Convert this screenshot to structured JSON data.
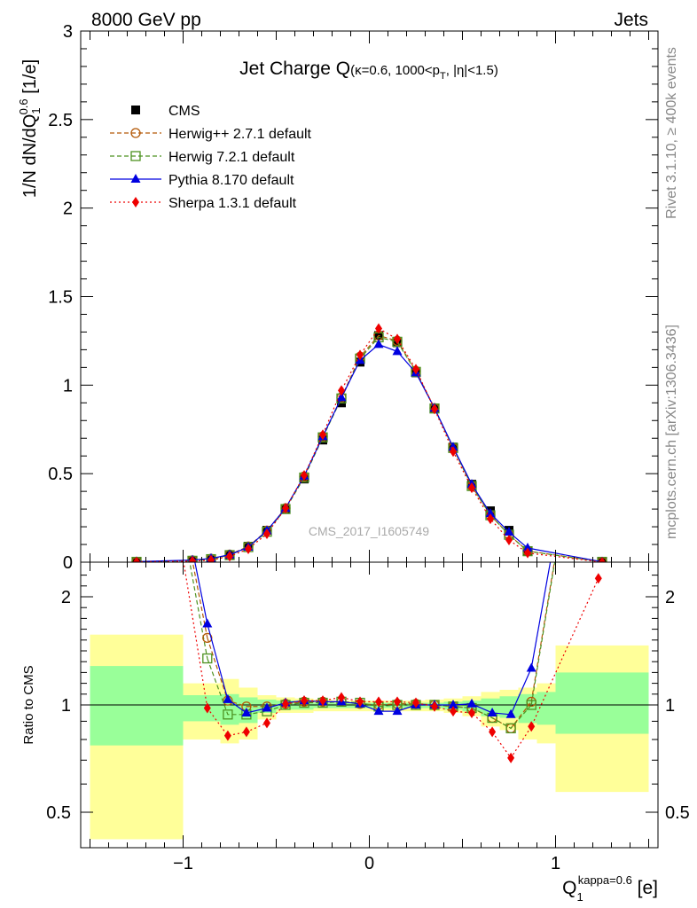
{
  "header": {
    "left_label": "8000 GeV pp",
    "right_label": "Jets"
  },
  "side_labels": {
    "rivet": "Rivet 3.1.10, ≥ 400k events",
    "mcplots": "mcplots.cern.ch [arXiv:1306.3436]"
  },
  "watermark": "CMS_2017_I1605749",
  "chart_data": [
    {
      "type": "line",
      "panel": "main",
      "title": "Jet Charge Q",
      "title_small": "(κ=0.6, 1000<p",
      "title_sub": "T",
      "title_tail": ", |η|<1.5)",
      "ylabel": "1/N dN/dQ",
      "ylabel_sub": "1",
      "ylabel_sup": "0.6",
      "ylabel_unit": " [1/e]",
      "xlim": [
        -1.55,
        1.55
      ],
      "ylim": [
        0,
        3
      ],
      "yticks": [
        "0",
        "0.5",
        "1",
        "1.5",
        "2",
        "2.5",
        "3"
      ],
      "yticks_values": [
        0,
        0.5,
        1,
        1.5,
        2,
        2.5,
        3
      ],
      "legend_placement": "top-left",
      "series": [
        {
          "name": "CMS",
          "color": "#000000",
          "marker": "square",
          "x": [
            -1.25,
            -0.95,
            -0.85,
            -0.75,
            -0.65,
            -0.55,
            -0.45,
            -0.35,
            -0.25,
            -0.15,
            -0.05,
            0.05,
            0.15,
            0.25,
            0.35,
            0.45,
            0.55,
            0.65,
            0.75,
            0.85,
            1.25
          ],
          "y": [
            0.0,
            0.005,
            0.012,
            0.04,
            0.09,
            0.18,
            0.3,
            0.47,
            0.69,
            0.9,
            1.13,
            1.28,
            1.24,
            1.07,
            0.87,
            0.65,
            0.44,
            0.29,
            0.18,
            0.06,
            0.0
          ]
        },
        {
          "name": "Herwig++ 2.7.1 default",
          "color": "#b35806",
          "marker": "circle-open",
          "x": [
            -1.25,
            -0.95,
            -0.85,
            -0.75,
            -0.65,
            -0.55,
            -0.45,
            -0.35,
            -0.25,
            -0.15,
            -0.05,
            0.05,
            0.15,
            0.25,
            0.35,
            0.45,
            0.55,
            0.65,
            0.75,
            0.85,
            1.25
          ],
          "y": [
            0.002,
            0.01,
            0.019,
            0.043,
            0.089,
            0.178,
            0.305,
            0.484,
            0.71,
            0.93,
            1.16,
            1.28,
            1.25,
            1.08,
            0.87,
            0.645,
            0.43,
            0.265,
            0.155,
            0.063,
            0.002
          ]
        },
        {
          "name": "Herwig 7.2.1 default",
          "color": "#4d9221",
          "marker": "square-open",
          "x": [
            -1.25,
            -0.95,
            -0.85,
            -0.75,
            -0.65,
            -0.55,
            -0.45,
            -0.35,
            -0.25,
            -0.15,
            -0.05,
            0.05,
            0.15,
            0.25,
            0.35,
            0.45,
            0.55,
            0.65,
            0.75,
            0.85,
            1.25
          ],
          "y": [
            0.002,
            0.008,
            0.017,
            0.04,
            0.085,
            0.172,
            0.3,
            0.478,
            0.705,
            0.925,
            1.15,
            1.27,
            1.245,
            1.075,
            0.868,
            0.645,
            0.43,
            0.265,
            0.155,
            0.062,
            0.002
          ]
        },
        {
          "name": "Pythia 8.170 default",
          "color": "#0000e0",
          "marker": "triangle",
          "x": [
            -1.25,
            -0.95,
            -0.85,
            -0.75,
            -0.65,
            -0.55,
            -0.45,
            -0.35,
            -0.25,
            -0.15,
            -0.05,
            0.05,
            0.15,
            0.25,
            0.35,
            0.45,
            0.55,
            0.65,
            0.75,
            0.85,
            1.25
          ],
          "y": [
            0.003,
            0.012,
            0.021,
            0.042,
            0.085,
            0.178,
            0.305,
            0.487,
            0.71,
            0.93,
            1.14,
            1.23,
            1.19,
            1.07,
            0.87,
            0.65,
            0.44,
            0.275,
            0.17,
            0.08,
            0.002
          ]
        },
        {
          "name": "Sherpa 1.3.1 default",
          "color": "#ee0000",
          "marker": "diamond",
          "x": [
            -1.25,
            -0.95,
            -0.85,
            -0.75,
            -0.65,
            -0.55,
            -0.45,
            -0.35,
            -0.25,
            -0.15,
            -0.05,
            0.05,
            0.15,
            0.25,
            0.35,
            0.45,
            0.55,
            0.65,
            0.75,
            0.85,
            1.25
          ],
          "y": [
            0.002,
            0.006,
            0.012,
            0.033,
            0.075,
            0.16,
            0.305,
            0.49,
            0.72,
            0.97,
            1.17,
            1.32,
            1.26,
            1.09,
            0.865,
            0.625,
            0.42,
            0.245,
            0.125,
            0.052,
            0.0
          ]
        }
      ]
    },
    {
      "type": "line",
      "panel": "ratio",
      "ylabel": "Ratio to CMS",
      "xlabel": "Q",
      "xlabel_sub": "1",
      "xlabel_sup": "kappa=0.6",
      "xlabel_unit": " [e]",
      "xlim": [
        -1.55,
        1.55
      ],
      "ylim": [
        0.4,
        2.25
      ],
      "xticks": [
        "−1",
        "0",
        "1"
      ],
      "xticks_values": [
        -1,
        0,
        1
      ],
      "yticks": [
        "0.5",
        "1",
        "2"
      ],
      "yticks_values": [
        0.5,
        1,
        2
      ],
      "bands": {
        "bin_edges": [
          -1.5,
          -1.0,
          -0.9,
          -0.8,
          -0.7,
          -0.6,
          -0.5,
          -0.4,
          -0.3,
          -0.2,
          -0.1,
          0.0,
          0.1,
          0.2,
          0.3,
          0.4,
          0.5,
          0.6,
          0.7,
          0.8,
          0.9,
          1.0,
          1.5
        ],
        "green_low": [
          0.77,
          0.9,
          0.9,
          0.88,
          0.89,
          0.95,
          0.97,
          0.97,
          0.98,
          0.98,
          0.98,
          0.98,
          0.98,
          0.98,
          0.98,
          0.97,
          0.96,
          0.93,
          0.92,
          0.89,
          0.88,
          0.83
        ],
        "green_high": [
          1.36,
          1.09,
          1.09,
          1.1,
          1.07,
          1.05,
          1.04,
          1.03,
          1.02,
          1.02,
          1.02,
          1.02,
          1.02,
          1.02,
          1.02,
          1.03,
          1.04,
          1.06,
          1.08,
          1.1,
          1.12,
          1.3
        ],
        "yellow_low": [
          0.42,
          0.8,
          0.8,
          0.78,
          0.8,
          0.91,
          0.95,
          0.95,
          0.96,
          0.96,
          0.96,
          0.96,
          0.96,
          0.96,
          0.96,
          0.95,
          0.93,
          0.87,
          0.85,
          0.8,
          0.78,
          0.57
        ],
        "yellow_high": [
          1.65,
          1.2,
          1.2,
          1.24,
          1.16,
          1.09,
          1.07,
          1.06,
          1.05,
          1.04,
          1.04,
          1.04,
          1.04,
          1.04,
          1.05,
          1.06,
          1.08,
          1.12,
          1.14,
          1.16,
          1.2,
          1.55
        ],
        "green_color": "#99ff99",
        "yellow_color": "#ffff99"
      },
      "series": [
        {
          "name": "Herwig++ 2.7.1 default",
          "color": "#b35806",
          "marker": "circle-open",
          "x": [
            -0.87,
            -0.76,
            -0.66,
            -0.55,
            -0.45,
            -0.35,
            -0.25,
            -0.15,
            -0.05,
            0.05,
            0.15,
            0.25,
            0.35,
            0.45,
            0.55,
            0.66,
            0.76,
            0.87
          ],
          "y": [
            1.62,
            1.04,
            0.99,
            0.99,
            1.01,
            1.03,
            1.03,
            1.03,
            1.01,
            1.0,
            1.01,
            1.01,
            1.0,
            0.99,
            0.98,
            0.92,
            0.86,
            1.03
          ]
        },
        {
          "name": "Herwig 7.2.1 default",
          "color": "#4d9221",
          "marker": "square-open",
          "x": [
            -0.87,
            -0.76,
            -0.66,
            -0.55,
            -0.45,
            -0.35,
            -0.25,
            -0.15,
            -0.05,
            0.05,
            0.15,
            0.25,
            0.35,
            0.45,
            0.55,
            0.66,
            0.76,
            0.87
          ],
          "y": [
            1.43,
            0.94,
            0.94,
            0.96,
            1.0,
            1.02,
            1.02,
            1.03,
            1.02,
            0.99,
            1.0,
            1.0,
            1.0,
            0.99,
            0.98,
            0.92,
            0.86,
            1.0
          ]
        },
        {
          "name": "Pythia 8.170 default",
          "color": "#0000e0",
          "marker": "triangle",
          "x": [
            -0.87,
            -0.76,
            -0.66,
            -0.55,
            -0.45,
            -0.35,
            -0.25,
            -0.15,
            -0.05,
            0.05,
            0.15,
            0.25,
            0.35,
            0.45,
            0.55,
            0.66,
            0.76,
            0.87
          ],
          "y": [
            1.75,
            1.05,
            0.95,
            0.98,
            1.02,
            1.04,
            1.03,
            1.03,
            1.01,
            0.96,
            0.96,
            1.0,
            1.0,
            1.0,
            1.01,
            0.95,
            0.94,
            1.34
          ]
        },
        {
          "name": "Sherpa 1.3.1 default",
          "color": "#ee0000",
          "marker": "diamond",
          "x": [
            -0.87,
            -0.76,
            -0.66,
            -0.55,
            -0.45,
            -0.35,
            -0.25,
            -0.15,
            -0.05,
            0.05,
            0.15,
            0.25,
            0.35,
            0.45,
            0.55,
            0.66,
            0.76,
            0.87,
            1.23
          ],
          "y": [
            0.98,
            0.82,
            0.84,
            0.89,
            1.01,
            1.04,
            1.04,
            1.07,
            1.03,
            1.03,
            1.03,
            1.02,
            0.99,
            0.96,
            0.95,
            0.84,
            0.71,
            0.87,
            2.17
          ]
        }
      ],
      "offscale_lines": [
        {
          "color": "#0000e0",
          "x": [
            -1.25,
            -0.87
          ],
          "y": [
            5.0,
            1.75
          ],
          "x_end": [
            0.87,
            1.25
          ],
          "y_end": [
            1.34,
            5.0
          ]
        },
        {
          "color": "#b35806",
          "x": [
            -1.25,
            -0.87
          ],
          "y": [
            5.0,
            1.62
          ],
          "x_end": [
            0.87,
            1.25
          ],
          "y_end": [
            1.03,
            5.0
          ]
        },
        {
          "color": "#4d9221",
          "x": [
            -1.25,
            -0.87
          ],
          "y": [
            5.0,
            1.43
          ],
          "x_end": [
            0.87,
            1.25
          ],
          "y_end": [
            1.0,
            5.0
          ]
        },
        {
          "color": "#ee0000",
          "x": [
            -1.25,
            -0.87
          ],
          "y": [
            5.0,
            0.98
          ]
        }
      ]
    }
  ]
}
